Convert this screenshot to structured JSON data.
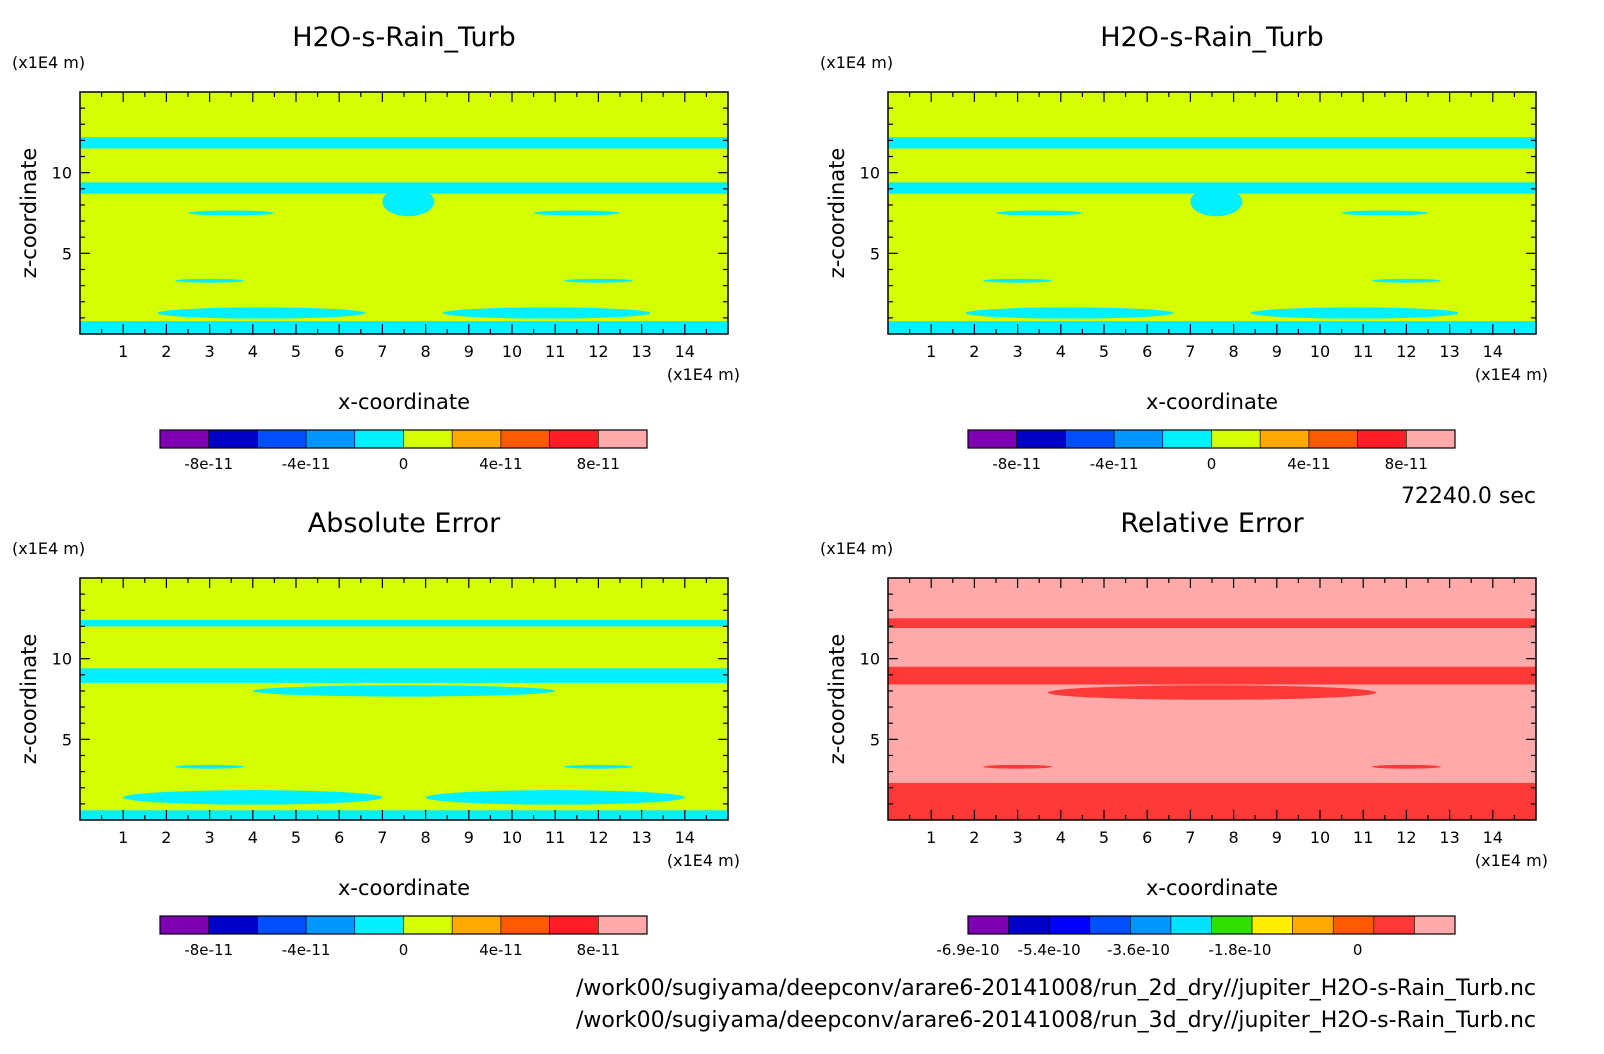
{
  "time_label": "72240.0 sec",
  "footer_paths": [
    "/work00/sugiyama/deepconv/arare6-20141008/run_2d_dry//jupiter_H2O-s-Rain_Turb.nc",
    "/work00/sugiyama/deepconv/arare6-20141008/run_3d_dry//jupiter_H2O-s-Rain_Turb.nc"
  ],
  "chart_data": [
    {
      "type": "heatmap",
      "title": "H2O-s-Rain_Turb",
      "xlabel": "x-coordinate",
      "ylabel": "z-coordinate",
      "x_unit": "(x1E4 m)",
      "y_unit": "(x1E4 m)",
      "xlim": [
        0,
        15
      ],
      "ylim": [
        0,
        15
      ],
      "x_ticks": [
        "1",
        "2",
        "3",
        "4",
        "5",
        "6",
        "7",
        "8",
        "9",
        "10",
        "11",
        "12",
        "13",
        "14"
      ],
      "y_ticks": [
        "5",
        "10"
      ],
      "background_color": "#d4ff00",
      "feature_color": "#00f0ff",
      "features": [
        {
          "kind": "band",
          "z": [
            11.5,
            12.2
          ],
          "x": [
            0,
            15
          ]
        },
        {
          "kind": "band",
          "z": [
            8.7,
            9.4
          ],
          "x": [
            0,
            15
          ]
        },
        {
          "kind": "blob",
          "cx": 7.6,
          "cz": 8.2,
          "rx": 0.6,
          "rz": 0.9
        },
        {
          "kind": "blob",
          "cx": 3.5,
          "cz": 7.5,
          "rx": 1.0,
          "rz": 0.15
        },
        {
          "kind": "blob",
          "cx": 11.5,
          "cz": 7.5,
          "rx": 1.0,
          "rz": 0.15
        },
        {
          "kind": "blob",
          "cx": 3.0,
          "cz": 3.3,
          "rx": 0.8,
          "rz": 0.12
        },
        {
          "kind": "blob",
          "cx": 12.0,
          "cz": 3.3,
          "rx": 0.8,
          "rz": 0.12
        },
        {
          "kind": "band",
          "z": [
            0,
            0.8
          ],
          "x": [
            0,
            15
          ]
        },
        {
          "kind": "blob",
          "cx": 4.2,
          "cz": 1.3,
          "rx": 2.4,
          "rz": 0.35
        },
        {
          "kind": "blob",
          "cx": 10.8,
          "cz": 1.3,
          "rx": 2.4,
          "rz": 0.35
        }
      ],
      "colorbar": {
        "colors": [
          "#7f00b3",
          "#0000c8",
          "#0050ff",
          "#0096ff",
          "#00f0ff",
          "#d4ff00",
          "#ffa800",
          "#ff5a00",
          "#ff1e28",
          "#ffaaaa"
        ],
        "labels": [
          "-8e-11",
          "-4e-11",
          "0",
          "4e-11",
          "8e-11"
        ],
        "label_positions": [
          1,
          3,
          5,
          7,
          9
        ]
      }
    },
    {
      "type": "heatmap",
      "title": "H2O-s-Rain_Turb",
      "xlabel": "x-coordinate",
      "ylabel": "z-coordinate",
      "x_unit": "(x1E4 m)",
      "y_unit": "(x1E4 m)",
      "xlim": [
        0,
        15
      ],
      "ylim": [
        0,
        15
      ],
      "x_ticks": [
        "1",
        "2",
        "3",
        "4",
        "5",
        "6",
        "7",
        "8",
        "9",
        "10",
        "11",
        "12",
        "13",
        "14"
      ],
      "y_ticks": [
        "5",
        "10"
      ],
      "background_color": "#d4ff00",
      "feature_color": "#00f0ff",
      "features": [
        {
          "kind": "band",
          "z": [
            11.5,
            12.2
          ],
          "x": [
            0,
            15
          ]
        },
        {
          "kind": "band",
          "z": [
            8.7,
            9.4
          ],
          "x": [
            0,
            15
          ]
        },
        {
          "kind": "blob",
          "cx": 7.6,
          "cz": 8.2,
          "rx": 0.6,
          "rz": 0.9
        },
        {
          "kind": "blob",
          "cx": 3.5,
          "cz": 7.5,
          "rx": 1.0,
          "rz": 0.15
        },
        {
          "kind": "blob",
          "cx": 11.5,
          "cz": 7.5,
          "rx": 1.0,
          "rz": 0.15
        },
        {
          "kind": "blob",
          "cx": 3.0,
          "cz": 3.3,
          "rx": 0.8,
          "rz": 0.12
        },
        {
          "kind": "blob",
          "cx": 12.0,
          "cz": 3.3,
          "rx": 0.8,
          "rz": 0.12
        },
        {
          "kind": "band",
          "z": [
            0,
            0.8
          ],
          "x": [
            0,
            15
          ]
        },
        {
          "kind": "blob",
          "cx": 4.2,
          "cz": 1.3,
          "rx": 2.4,
          "rz": 0.35
        },
        {
          "kind": "blob",
          "cx": 10.8,
          "cz": 1.3,
          "rx": 2.4,
          "rz": 0.35
        }
      ],
      "colorbar": {
        "colors": [
          "#7f00b3",
          "#0000c8",
          "#0050ff",
          "#0096ff",
          "#00f0ff",
          "#d4ff00",
          "#ffa800",
          "#ff5a00",
          "#ff1e28",
          "#ffaaaa"
        ],
        "labels": [
          "-8e-11",
          "-4e-11",
          "0",
          "4e-11",
          "8e-11"
        ],
        "label_positions": [
          1,
          3,
          5,
          7,
          9
        ]
      }
    },
    {
      "type": "heatmap",
      "title": "Absolute Error",
      "xlabel": "x-coordinate",
      "ylabel": "z-coordinate",
      "x_unit": "(x1E4 m)",
      "y_unit": "(x1E4 m)",
      "xlim": [
        0,
        15
      ],
      "ylim": [
        0,
        15
      ],
      "x_ticks": [
        "1",
        "2",
        "3",
        "4",
        "5",
        "6",
        "7",
        "8",
        "9",
        "10",
        "11",
        "12",
        "13",
        "14"
      ],
      "y_ticks": [
        "5",
        "10"
      ],
      "background_color": "#d4ff00",
      "feature_color": "#00f0ff",
      "features": [
        {
          "kind": "band",
          "z": [
            12.0,
            12.4
          ],
          "x": [
            0,
            15
          ]
        },
        {
          "kind": "band",
          "z": [
            8.5,
            9.4
          ],
          "x": [
            0,
            15
          ]
        },
        {
          "kind": "blob",
          "cx": 7.5,
          "cz": 8.0,
          "rx": 3.5,
          "rz": 0.35
        },
        {
          "kind": "blob",
          "cx": 3.0,
          "cz": 3.3,
          "rx": 0.8,
          "rz": 0.12
        },
        {
          "kind": "blob",
          "cx": 12.0,
          "cz": 3.3,
          "rx": 0.8,
          "rz": 0.12
        },
        {
          "kind": "band",
          "z": [
            0,
            0.6
          ],
          "x": [
            0,
            15
          ]
        },
        {
          "kind": "blob",
          "cx": 4.0,
          "cz": 1.4,
          "rx": 3.0,
          "rz": 0.45
        },
        {
          "kind": "blob",
          "cx": 11.0,
          "cz": 1.4,
          "rx": 3.0,
          "rz": 0.45
        }
      ],
      "colorbar": {
        "colors": [
          "#7f00b3",
          "#0000c8",
          "#0050ff",
          "#0096ff",
          "#00f0ff",
          "#d4ff00",
          "#ffa800",
          "#ff5a00",
          "#ff1e28",
          "#ffaaaa"
        ],
        "labels": [
          "-8e-11",
          "-4e-11",
          "0",
          "4e-11",
          "8e-11"
        ],
        "label_positions": [
          1,
          3,
          5,
          7,
          9
        ]
      }
    },
    {
      "type": "heatmap",
      "title": "Relative Error",
      "xlabel": "x-coordinate",
      "ylabel": "z-coordinate",
      "x_unit": "(x1E4 m)",
      "y_unit": "(x1E4 m)",
      "xlim": [
        0,
        15
      ],
      "ylim": [
        0,
        15
      ],
      "x_ticks": [
        "1",
        "2",
        "3",
        "4",
        "5",
        "6",
        "7",
        "8",
        "9",
        "10",
        "11",
        "12",
        "13",
        "14"
      ],
      "y_ticks": [
        "5",
        "10"
      ],
      "background_color": "#ffaaaa",
      "feature_color": "#ff3838",
      "features": [
        {
          "kind": "band",
          "z": [
            11.9,
            12.5
          ],
          "x": [
            0,
            15
          ]
        },
        {
          "kind": "band",
          "z": [
            8.4,
            9.5
          ],
          "x": [
            0,
            15
          ]
        },
        {
          "kind": "blob",
          "cx": 7.5,
          "cz": 7.9,
          "rx": 3.8,
          "rz": 0.45
        },
        {
          "kind": "blob",
          "cx": 3.0,
          "cz": 3.3,
          "rx": 0.8,
          "rz": 0.12
        },
        {
          "kind": "blob",
          "cx": 12.0,
          "cz": 3.3,
          "rx": 0.8,
          "rz": 0.12
        },
        {
          "kind": "band",
          "z": [
            0,
            1.4
          ],
          "x": [
            0,
            15
          ]
        },
        {
          "kind": "band",
          "z": [
            1.4,
            2.3
          ],
          "x": [
            0,
            15
          ]
        }
      ],
      "colorbar": {
        "colors": [
          "#7f00b3",
          "#0000c8",
          "#0000ff",
          "#0050ff",
          "#0096ff",
          "#00e0ff",
          "#30e000",
          "#ffee00",
          "#ffa800",
          "#ff5a00",
          "#ff3838",
          "#ffaaaa"
        ],
        "labels": [
          "-6.9e-10",
          "-5.4e-10",
          "-3.6e-10",
          "-1.8e-10",
          "0"
        ],
        "label_positions": [
          0,
          2,
          4.2,
          6.7,
          9.6
        ]
      }
    }
  ]
}
